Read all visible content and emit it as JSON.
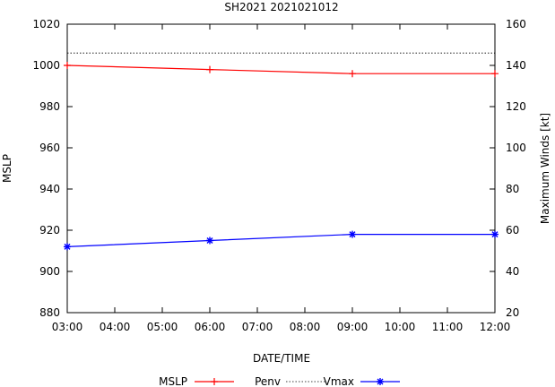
{
  "chart_data": {
    "type": "line",
    "title": "SH2021 2021021012",
    "xlabel": "DATE/TIME",
    "ylabel_left": "MSLP",
    "ylabel_right": "Maximum Winds [kt]",
    "x_ticks": [
      "03:00",
      "04:00",
      "05:00",
      "06:00",
      "07:00",
      "08:00",
      "09:00",
      "10:00",
      "11:00",
      "12:00"
    ],
    "x_hours": [
      3,
      4,
      5,
      6,
      7,
      8,
      9,
      10,
      11,
      12
    ],
    "xlim": [
      3,
      12
    ],
    "y_left_ticks": [
      880,
      900,
      920,
      940,
      960,
      980,
      1000,
      1020
    ],
    "ylim_left": [
      880,
      1020
    ],
    "y_right_ticks": [
      20,
      40,
      60,
      80,
      100,
      120,
      140,
      160
    ],
    "ylim_right": [
      20,
      160
    ],
    "series": [
      {
        "name": "MSLP",
        "axis": "left",
        "color": "#ff0000",
        "marker": "plus",
        "x": [
          3,
          6,
          9,
          12
        ],
        "values": [
          1000,
          998,
          996,
          996
        ]
      },
      {
        "name": "Penv",
        "axis": "left",
        "color": "#000000",
        "style": "dotted",
        "x": [
          3,
          12
        ],
        "values": [
          1006,
          1006
        ]
      },
      {
        "name": "Vmax",
        "axis": "right",
        "color": "#0000ff",
        "marker": "star",
        "x": [
          3,
          6,
          9,
          12
        ],
        "values": [
          52,
          55,
          58,
          58
        ]
      }
    ],
    "legend": [
      "MSLP",
      "Penv",
      "Vmax"
    ],
    "legend_position": "bottom",
    "grid": false
  }
}
